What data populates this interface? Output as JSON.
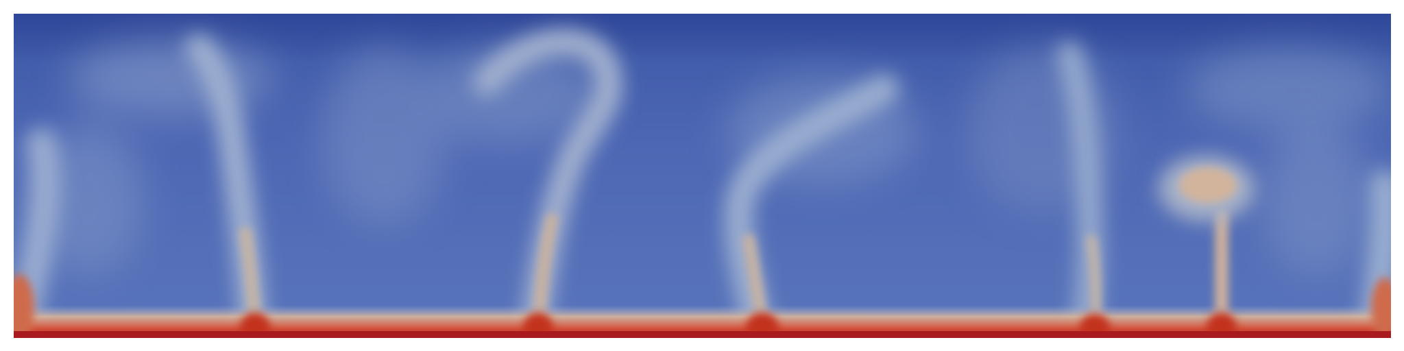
{
  "image": {
    "colormap": {
      "cold": "#3c58a6",
      "mid": "#8fa3c8",
      "warm": "#c8a88c",
      "hot": "#c0211f"
    },
    "background": "#ffffff"
  }
}
